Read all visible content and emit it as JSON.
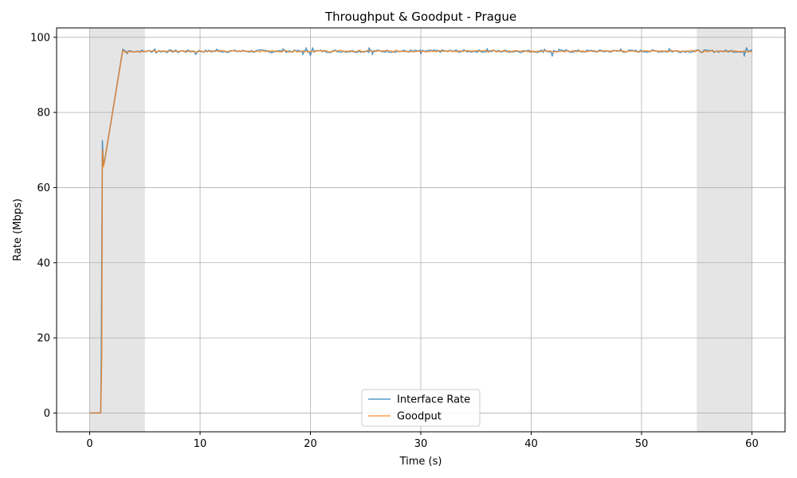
{
  "chart_data": {
    "type": "line",
    "title": "Throughput & Goodput - Prague",
    "xlabel": "Time (s)",
    "ylabel": "Rate (Mbps)",
    "xlim": [
      -3,
      63
    ],
    "ylim": [
      -5,
      102.5
    ],
    "xticks": [
      0,
      10,
      20,
      30,
      40,
      50,
      60
    ],
    "yticks": [
      0,
      20,
      40,
      60,
      80,
      100
    ],
    "grid": true,
    "legend_position": "bottom-center",
    "shaded_regions": [
      {
        "x_start": 0,
        "x_end": 5,
        "color": "#d3d3d3"
      },
      {
        "x_start": 55,
        "x_end": 60,
        "color": "#d3d3d3"
      }
    ],
    "steady_state_level": 96.3,
    "series": [
      {
        "name": "Interface Rate",
        "color": "#1f77b4",
        "points": [
          [
            0,
            0
          ],
          [
            1.0,
            0
          ],
          [
            1.05,
            16
          ],
          [
            1.15,
            72.5
          ],
          [
            1.25,
            66
          ],
          [
            1.4,
            68
          ],
          [
            3.0,
            96.8
          ],
          [
            3.3,
            96.2
          ],
          [
            3.4,
            95.6
          ],
          [
            3.5,
            96.4
          ],
          [
            5.9,
            96.9
          ],
          [
            6.0,
            95.8
          ],
          [
            8.0,
            95.9
          ],
          [
            9.6,
            95.4
          ],
          [
            11.5,
            96.8
          ],
          [
            16.5,
            95.8
          ],
          [
            17.5,
            96.9
          ],
          [
            19.3,
            95.4
          ],
          [
            19.6,
            97.2
          ],
          [
            20.0,
            95.2
          ],
          [
            20.2,
            97.2
          ],
          [
            25.3,
            97.2
          ],
          [
            25.6,
            95.4
          ],
          [
            30.0,
            95.6
          ],
          [
            36.0,
            97.0
          ],
          [
            41.2,
            96.8
          ],
          [
            41.9,
            95.0
          ],
          [
            42.5,
            96.8
          ],
          [
            48.1,
            96.9
          ],
          [
            52.5,
            97.0
          ],
          [
            59.3,
            95.0
          ],
          [
            59.5,
            97.2
          ],
          [
            60,
            96.3
          ]
        ]
      },
      {
        "name": "Goodput",
        "color": "#ff7f0e",
        "points": [
          [
            0,
            0
          ],
          [
            1.0,
            0
          ],
          [
            1.1,
            16
          ],
          [
            1.15,
            70
          ],
          [
            1.25,
            65.5
          ],
          [
            1.4,
            68
          ],
          [
            3.0,
            96.5
          ],
          [
            3.3,
            95.9
          ],
          [
            3.4,
            95.8
          ],
          [
            3.5,
            96.3
          ],
          [
            6.0,
            96.0
          ],
          [
            20.0,
            96.2
          ],
          [
            40.0,
            96.1
          ],
          [
            60,
            96.3
          ]
        ]
      }
    ]
  }
}
